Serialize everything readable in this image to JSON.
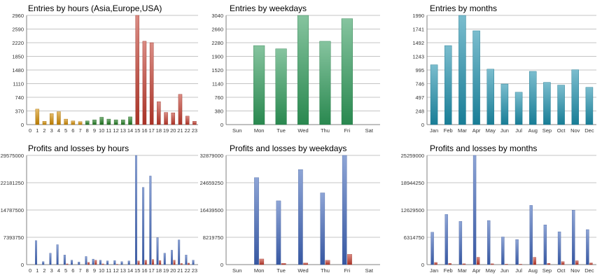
{
  "colors": {
    "orange": "#d08a00",
    "green": "#1f7a1f",
    "red": "#c0392b",
    "seagreen": "#2f9a5a",
    "teal": "#1b8eab",
    "blue": "#3d63b8",
    "loss": "#c0392b",
    "grid": "#b0b0b0",
    "axis": "#808080"
  },
  "chart_data": [
    {
      "type": "bar",
      "title": "Entries by hours (Asia,Europe,USA)",
      "categories": [
        "0",
        "1",
        "2",
        "3",
        "4",
        "5",
        "6",
        "7",
        "8",
        "9",
        "10",
        "11",
        "12",
        "13",
        "14",
        "15",
        "16",
        "17",
        "18",
        "19",
        "20",
        "21",
        "22",
        "23"
      ],
      "yticks": [
        "0",
        "370",
        "740",
        "1110",
        "1480",
        "1850",
        "2220",
        "2590",
        "2960"
      ],
      "ylim": [
        0,
        2960
      ],
      "values": [
        0,
        420,
        90,
        300,
        350,
        150,
        100,
        80,
        100,
        130,
        200,
        150,
        130,
        130,
        210,
        2960,
        2260,
        2220,
        620,
        330,
        320,
        820,
        230,
        90
      ],
      "bar_colors": [
        "orange",
        "orange",
        "orange",
        "orange",
        "orange",
        "orange",
        "orange",
        "orange",
        "green",
        "green",
        "green",
        "green",
        "green",
        "green",
        "green",
        "red",
        "red",
        "red",
        "red",
        "red",
        "red",
        "red",
        "red",
        "red"
      ],
      "grid": true
    },
    {
      "type": "bar",
      "title": "Entries by weekdays",
      "categories": [
        "Sun",
        "Mon",
        "Tue",
        "Wed",
        "Thu",
        "Fri",
        "Sat"
      ],
      "yticks": [
        "0",
        "380",
        "760",
        "1140",
        "1520",
        "1900",
        "2280",
        "2660",
        "3040"
      ],
      "ylim": [
        0,
        3040
      ],
      "values": [
        0,
        2200,
        2110,
        3040,
        2320,
        2950,
        0
      ],
      "bar_color": "seagreen",
      "grid": true
    },
    {
      "type": "bar",
      "title": "Entries by months",
      "categories": [
        "Jan",
        "Feb",
        "Mar",
        "Apr",
        "May",
        "Jun",
        "Jul",
        "Aug",
        "Sep",
        "Oct",
        "Nov",
        "Dec"
      ],
      "yticks": [
        "0",
        "248",
        "497",
        "746",
        "995",
        "1243",
        "1492",
        "1741",
        "1990"
      ],
      "ylim": [
        0,
        1990
      ],
      "values": [
        1090,
        1440,
        1990,
        1710,
        1010,
        740,
        590,
        970,
        770,
        720,
        1000,
        680
      ],
      "bar_color": "teal",
      "grid": true
    },
    {
      "type": "bar",
      "title": "Profits and losses by hours",
      "categories": [
        "0",
        "1",
        "2",
        "3",
        "4",
        "5",
        "6",
        "7",
        "8",
        "9",
        "10",
        "11",
        "12",
        "13",
        "14",
        "15",
        "16",
        "17",
        "18",
        "19",
        "20",
        "21",
        "22",
        "23"
      ],
      "yticks": [
        "0",
        "7393750",
        "14787500",
        "22181250",
        "29575000"
      ],
      "ylim": [
        0,
        29575000
      ],
      "series": [
        {
          "values": [
            0,
            6500000,
            800000,
            3100000,
            5400000,
            2600000,
            1200000,
            700000,
            2200000,
            1500000,
            1200000,
            1000000,
            1100000,
            800000,
            1000000,
            29575000,
            20900000,
            24000000,
            7300000,
            3100000,
            3900000,
            6700000,
            2600000,
            1200000
          ],
          "color": "blue"
        },
        {
          "values": [
            0,
            0,
            0,
            0,
            0,
            200000,
            0,
            0,
            600000,
            1200000,
            200000,
            0,
            100000,
            0,
            0,
            1000000,
            1200000,
            1400000,
            1100000,
            0,
            1200000,
            300000,
            400000,
            0
          ],
          "color": "loss"
        }
      ],
      "grid": true
    },
    {
      "type": "bar",
      "title": "Profits and losses by weekdays",
      "categories": [
        "Sun",
        "Mon",
        "Tue",
        "Wed",
        "Thu",
        "Fri",
        "Sat"
      ],
      "yticks": [
        "0",
        "8219750",
        "16439500",
        "24659250",
        "32879000"
      ],
      "ylim": [
        0,
        32879000
      ],
      "series": [
        {
          "values": [
            0,
            26200000,
            19200000,
            28600000,
            21600000,
            32879000,
            0
          ],
          "color": "blue"
        },
        {
          "values": [
            0,
            1700000,
            400000,
            500000,
            1300000,
            3100000,
            0
          ],
          "color": "loss"
        }
      ],
      "grid": true
    },
    {
      "type": "bar",
      "title": "Profits and losses by months",
      "categories": [
        "Jan",
        "Feb",
        "Mar",
        "Apr",
        "May",
        "Jun",
        "Jul",
        "Aug",
        "Sep",
        "Oct",
        "Nov",
        "Dec"
      ],
      "yticks": [
        "0",
        "6314750",
        "12629500",
        "18944250",
        "25259000"
      ],
      "ylim": [
        0,
        25259000
      ],
      "series": [
        {
          "values": [
            7500000,
            11600000,
            10000000,
            25259000,
            10200000,
            6400000,
            5800000,
            13700000,
            9200000,
            7600000,
            12600000,
            8100000
          ],
          "color": "blue"
        },
        {
          "values": [
            500000,
            300000,
            200000,
            1700000,
            200000,
            100000,
            100000,
            1700000,
            300000,
            700000,
            900000,
            400000
          ],
          "color": "loss"
        }
      ],
      "grid": true
    }
  ]
}
